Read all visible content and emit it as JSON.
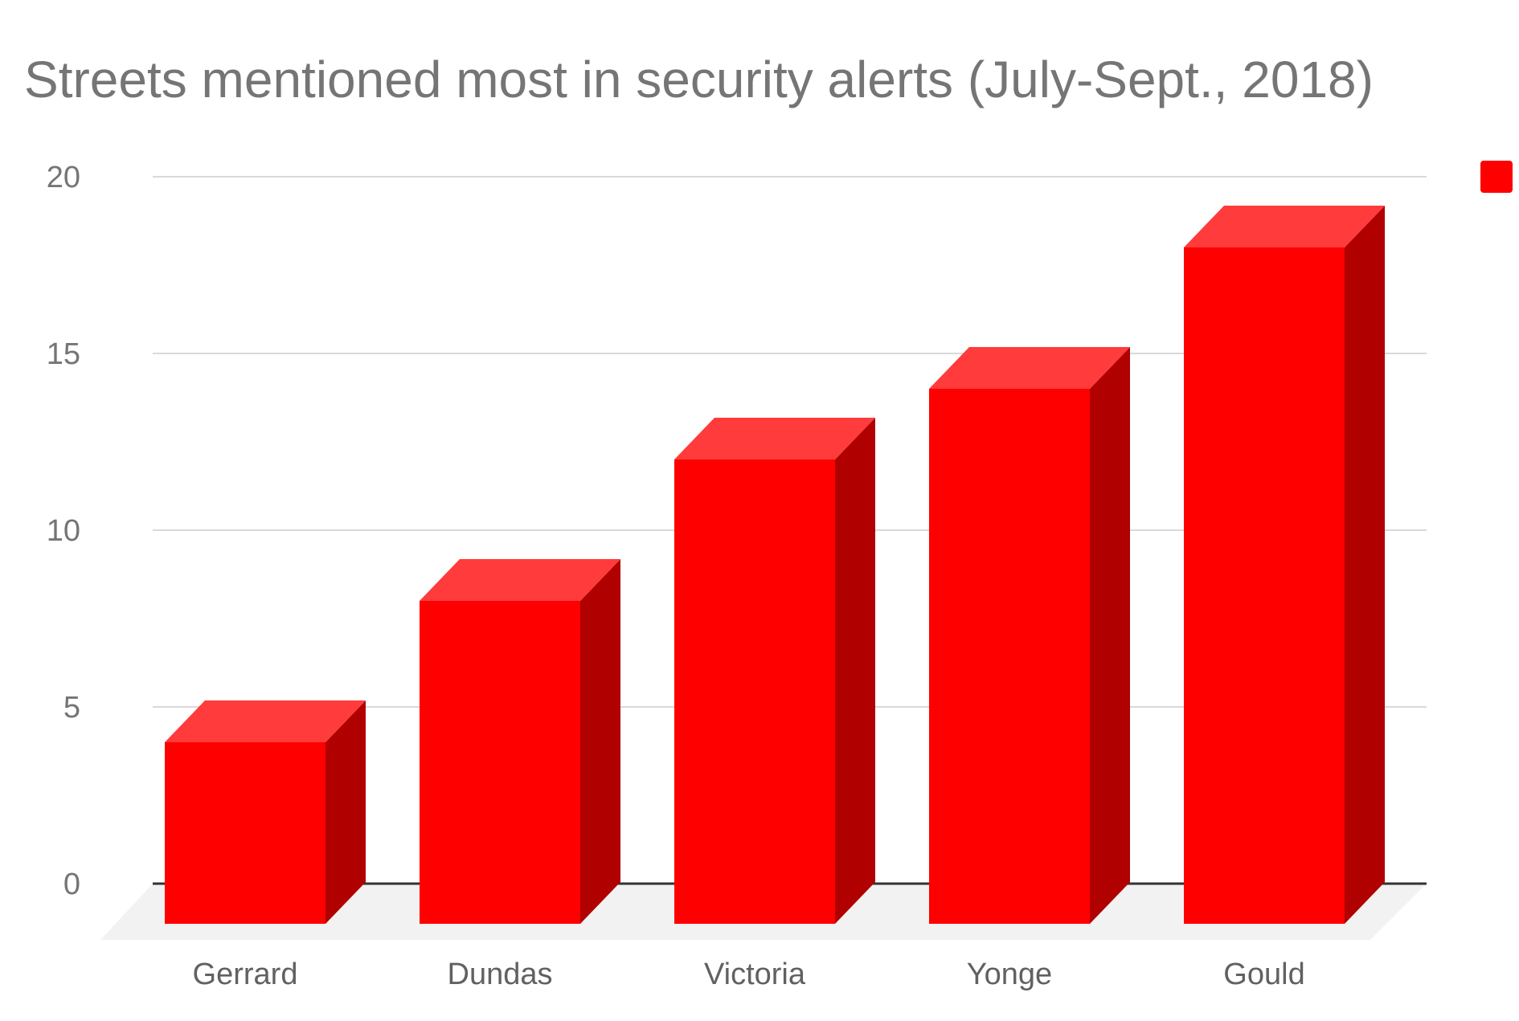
{
  "chart_data": {
    "type": "bar",
    "title": "Streets mentioned most in security alerts (July-Sept., 2018)",
    "categories": [
      "Gerrard",
      "Dundas",
      "Victoria",
      "Yonge",
      "Gould"
    ],
    "series": [
      {
        "values": [
          4,
          8,
          12,
          14,
          18
        ]
      }
    ],
    "xlabel": "",
    "ylabel": "",
    "ylim": [
      0,
      20
    ],
    "yticks": [
      "0",
      "5",
      "10",
      "15",
      "20"
    ],
    "grid": true,
    "legend": "top-right",
    "style": "3d",
    "colors": {
      "bar_front": "#ff0000",
      "bar_top": "#ff3b3b",
      "bar_side": "#b00000",
      "floor": "#f2f2f2",
      "grid": "#d9d9d9",
      "baseline": "#333333"
    }
  }
}
